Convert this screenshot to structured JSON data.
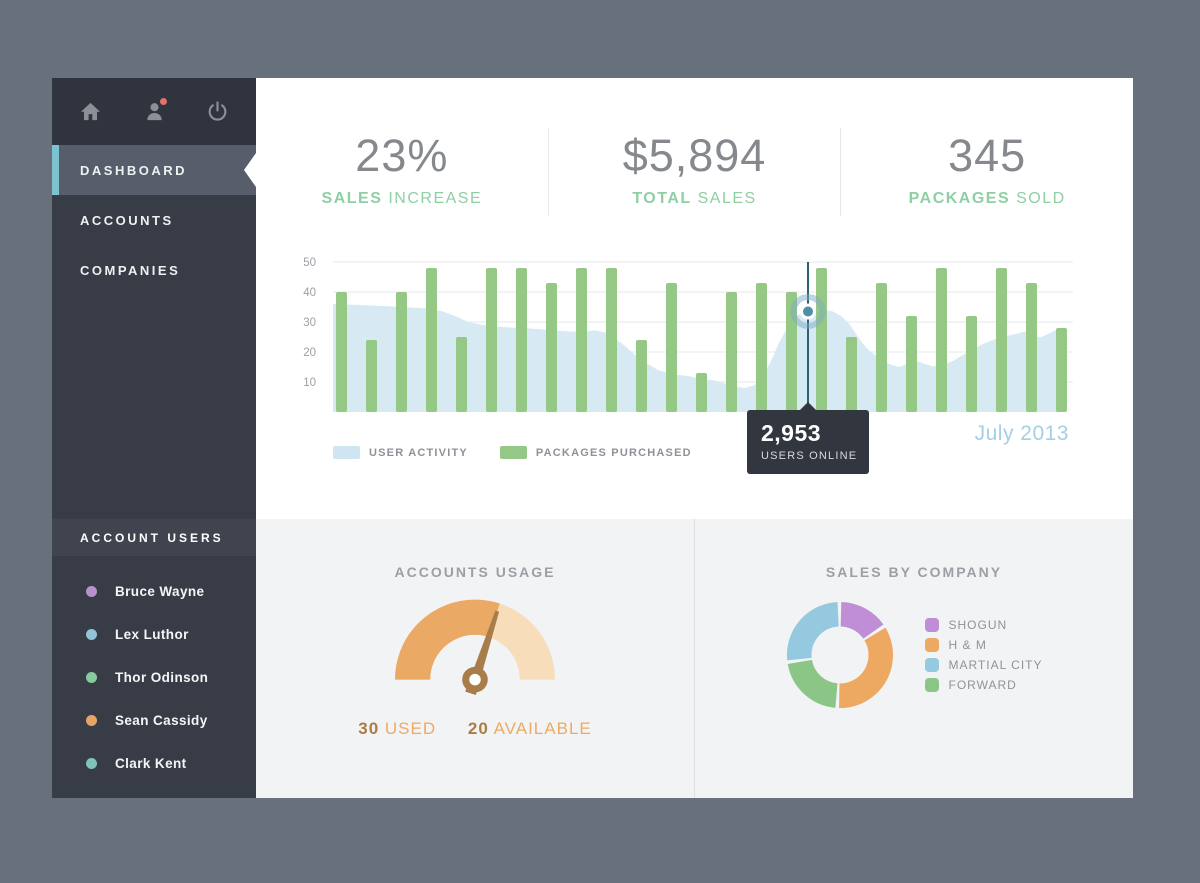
{
  "sidebar": {
    "icons": [
      {
        "name": "home"
      },
      {
        "name": "user",
        "notification": true
      },
      {
        "name": "power"
      }
    ],
    "nav": [
      {
        "label": "DASHBOARD",
        "active": true
      },
      {
        "label": "ACCOUNTS",
        "active": false
      },
      {
        "label": "COMPANIES",
        "active": false
      }
    ],
    "account_users": {
      "header": "ACCOUNT USERS",
      "users": [
        {
          "name": "Bruce Wayne",
          "dot_color": "#b98fd0"
        },
        {
          "name": "Lex Luthor",
          "dot_color": "#92c3d8"
        },
        {
          "name": "Thor Odinson",
          "dot_color": "#85cb9e"
        },
        {
          "name": "Sean Cassidy",
          "dot_color": "#e5a566"
        },
        {
          "name": "Clark Kent",
          "dot_color": "#7ec4bd"
        }
      ]
    }
  },
  "stats": [
    {
      "value": "23%",
      "label_strong": "SALES",
      "label_rest": "INCREASE"
    },
    {
      "value": "$5,894",
      "label_strong": "TOTAL",
      "label_rest": "SALES"
    },
    {
      "value": "345",
      "label_strong": "PACKAGES",
      "label_rest": "SOLD"
    }
  ],
  "chart_data": {
    "type": "combo",
    "ylim": [
      0,
      50
    ],
    "yticks": [
      10,
      20,
      30,
      40,
      50
    ],
    "grid": true,
    "x_period_label": "July 2013",
    "series": [
      {
        "name": "USER ACTIVITY",
        "type": "area",
        "color": "#d7e9f3",
        "points": [
          [
            0,
            36
          ],
          [
            40,
            35.5
          ],
          [
            70,
            35
          ],
          [
            95,
            34.5
          ],
          [
            110,
            33.5
          ],
          [
            122,
            32
          ],
          [
            135,
            30
          ],
          [
            150,
            29
          ],
          [
            170,
            28.3
          ],
          [
            190,
            28
          ],
          [
            210,
            27.5
          ],
          [
            230,
            27
          ],
          [
            248,
            26.7
          ],
          [
            262,
            27.2
          ],
          [
            272,
            26.5
          ],
          [
            282,
            24.5
          ],
          [
            292,
            22
          ],
          [
            302,
            19
          ],
          [
            312,
            16.5
          ],
          [
            325,
            14
          ],
          [
            340,
            12.5
          ],
          [
            355,
            12
          ],
          [
            368,
            11
          ],
          [
            382,
            10.5
          ],
          [
            392,
            9.5
          ],
          [
            402,
            8.5
          ],
          [
            412,
            8
          ],
          [
            422,
            9
          ],
          [
            430,
            12
          ],
          [
            438,
            17
          ],
          [
            446,
            23
          ],
          [
            454,
            28
          ],
          [
            462,
            31.5
          ],
          [
            470,
            33.5
          ],
          [
            480,
            34.5
          ],
          [
            490,
            34.2
          ],
          [
            500,
            33.5
          ],
          [
            508,
            32
          ],
          [
            516,
            29.5
          ],
          [
            522,
            26.5
          ],
          [
            528,
            23.5
          ],
          [
            536,
            20.5
          ],
          [
            546,
            18
          ],
          [
            556,
            16
          ],
          [
            566,
            15
          ],
          [
            576,
            16.3
          ],
          [
            584,
            17
          ],
          [
            592,
            16
          ],
          [
            600,
            15.2
          ],
          [
            610,
            15.8
          ],
          [
            620,
            17
          ],
          [
            630,
            19
          ],
          [
            640,
            21
          ],
          [
            652,
            23
          ],
          [
            664,
            24.5
          ],
          [
            676,
            25.5
          ],
          [
            686,
            26.3
          ],
          [
            694,
            27
          ],
          [
            701,
            25.8
          ],
          [
            707,
            24.8
          ],
          [
            715,
            26
          ],
          [
            723,
            27.3
          ],
          [
            731,
            28
          ]
        ]
      },
      {
        "name": "PACKAGES PURCHASED",
        "type": "bar",
        "color": "#94c884",
        "values": [
          40,
          24,
          40,
          48,
          25,
          48,
          48,
          43,
          48,
          48,
          24,
          43,
          13,
          40,
          43,
          40,
          48,
          25,
          43,
          32,
          48,
          32,
          48,
          43,
          28
        ]
      }
    ],
    "marker": {
      "bar_index": 16,
      "area_value": 33.5,
      "line_color": "#2f5d73",
      "dot_color": "#4d8ea8",
      "ring_color": "rgba(124,171,196,0.5)"
    },
    "tooltip": {
      "value": "2,953",
      "label": "USERS ONLINE"
    }
  },
  "legend": [
    {
      "label": "USER ACTIVITY",
      "color": "#cfe5f1"
    },
    {
      "label": "PACKAGES PURCHASED",
      "color": "#93c886"
    }
  ],
  "accounts_usage": {
    "title": "ACCOUNTS USAGE",
    "used": "30",
    "used_label": "USED",
    "available": "20",
    "available_label": "AVAILABLE",
    "used_value": 30,
    "available_value": 20,
    "arc_color": "#eaa965",
    "arc_bg_color": "#f8ddbb",
    "needle_color": "#a87d49"
  },
  "sales_by_company": {
    "title": "SALES BY COMPANY",
    "slices": [
      {
        "label": "SHOGUN",
        "color": "#c08ed4",
        "pct": 16,
        "order": 0
      },
      {
        "label": "H & M",
        "color": "#eda862",
        "pct": 35,
        "order": 1
      },
      {
        "label": "MARTIAL CITY",
        "color": "#95c9e0",
        "pct": 27,
        "order": 3
      },
      {
        "label": "FORWARD",
        "color": "#8cc687",
        "pct": 22,
        "order": 2
      }
    ]
  }
}
